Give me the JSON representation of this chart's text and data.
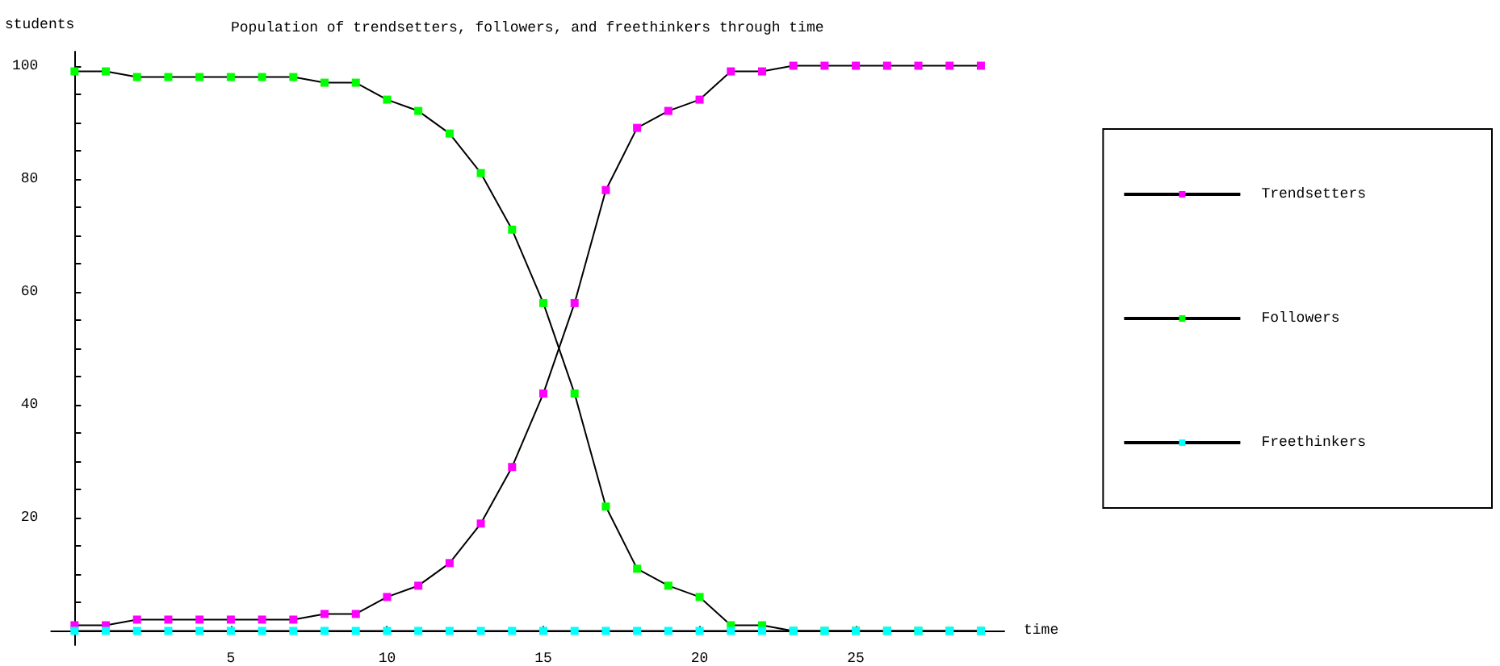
{
  "chart_data": {
    "type": "line",
    "title": "Population of trendsetters, followers, and freethinkers through time",
    "xlabel": "time",
    "ylabel": "students",
    "x": [
      0,
      1,
      2,
      3,
      4,
      5,
      6,
      7,
      8,
      9,
      10,
      11,
      12,
      13,
      14,
      15,
      16,
      17,
      18,
      19,
      20,
      21,
      22,
      23,
      24,
      25,
      26,
      27,
      28,
      29
    ],
    "series": [
      {
        "name": "Trendsetters",
        "color": "#ff00ff",
        "values": [
          1,
          1,
          2,
          2,
          2,
          2,
          2,
          2,
          3,
          3,
          6,
          8,
          12,
          19,
          29,
          42,
          58,
          78,
          89,
          92,
          94,
          99,
          99,
          100,
          100,
          100,
          100,
          100,
          100,
          100
        ]
      },
      {
        "name": "Followers",
        "color": "#00ff00",
        "values": [
          99,
          99,
          98,
          98,
          98,
          98,
          98,
          98,
          97,
          97,
          94,
          92,
          88,
          81,
          71,
          58,
          42,
          22,
          11,
          8,
          6,
          1,
          1,
          0,
          0,
          0,
          0,
          0,
          0,
          0
        ]
      },
      {
        "name": "Freethinkers",
        "color": "#00ffff",
        "values": [
          0,
          0,
          0,
          0,
          0,
          0,
          0,
          0,
          0,
          0,
          0,
          0,
          0,
          0,
          0,
          0,
          0,
          0,
          0,
          0,
          0,
          0,
          0,
          0,
          0,
          0,
          0,
          0,
          0,
          0
        ]
      }
    ],
    "xlim": [
      -0.75,
      29.75
    ],
    "xticks": [
      5,
      10,
      15,
      20,
      25
    ],
    "ylim": [
      -2.5,
      102.5
    ],
    "yticks": [
      {
        "value": 5,
        "label": null
      },
      {
        "value": 10,
        "label": null
      },
      {
        "value": 15,
        "label": null
      },
      20,
      {
        "value": 25,
        "label": null
      },
      {
        "value": 30,
        "label": null
      },
      {
        "value": 35,
        "label": null
      },
      40,
      {
        "value": 45,
        "label": null
      },
      {
        "value": 50,
        "label": null
      },
      {
        "value": 55,
        "label": null
      },
      60,
      {
        "value": 65,
        "label": null
      },
      {
        "value": 70,
        "label": null
      },
      {
        "value": 75,
        "label": null
      },
      80,
      {
        "value": 85,
        "label": null
      },
      {
        "value": 90,
        "label": null
      },
      {
        "value": 95,
        "label": null
      },
      100
    ],
    "grid": false,
    "legend": "right",
    "marker": "square",
    "line_style": "solid"
  }
}
